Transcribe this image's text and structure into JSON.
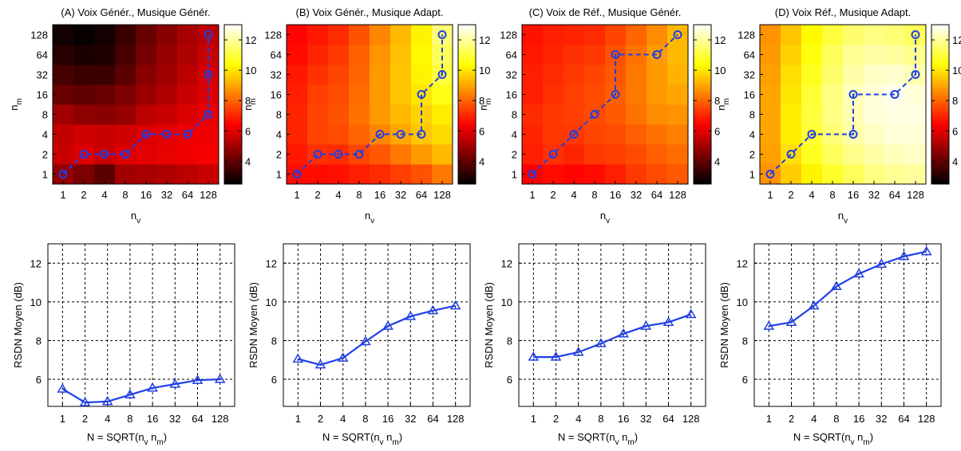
{
  "labels": {
    "tick_values": [
      "1",
      "2",
      "4",
      "8",
      "16",
      "32",
      "64",
      "128"
    ],
    "colorbar_ticks": [
      4,
      6,
      8,
      10,
      12
    ],
    "line_yticks": [
      6,
      8,
      10,
      12
    ],
    "heatmap_xlabel": {
      "main": "n",
      "sub": "v"
    },
    "heatmap_ylabel": {
      "main": "n",
      "sub": "m"
    },
    "line_xlabel": {
      "prefix": "N = SQRT(n",
      "sub1": "v",
      "middle": " n",
      "sub2": "m",
      "suffix": ")"
    },
    "line_ylabel": "RSDN Moyen (dB)"
  },
  "colors": {
    "path": "#1f3fe6",
    "grid": "#000000"
  },
  "chart_data": [
    {
      "id": "A",
      "type": "heatmap",
      "title": "(A) Voix Génér., Musique Génér.",
      "colorbar_range": [
        2.5,
        13
      ],
      "grid": [
        [
          4.8,
          4.4,
          3.9,
          5.0,
          5.1,
          5.2,
          5.4,
          5.6
        ],
        [
          5.6,
          5.9,
          5.6,
          5.9,
          6.0,
          6.1,
          6.2,
          6.3
        ],
        [
          5.5,
          5.7,
          5.6,
          5.7,
          5.9,
          6.0,
          6.2,
          6.2
        ],
        [
          5.0,
          4.7,
          4.6,
          4.8,
          5.4,
          5.6,
          5.9,
          6.1
        ],
        [
          4.1,
          4.0,
          4.1,
          4.4,
          4.9,
          5.2,
          5.6,
          5.9
        ],
        [
          3.6,
          3.4,
          3.4,
          3.9,
          4.6,
          5.0,
          5.4,
          5.8
        ],
        [
          3.1,
          2.9,
          3.0,
          3.6,
          4.3,
          4.8,
          5.2,
          5.6
        ],
        [
          2.8,
          2.6,
          2.8,
          3.4,
          4.1,
          4.6,
          5.1,
          5.4
        ]
      ],
      "path": [
        [
          1,
          1
        ],
        [
          2,
          2
        ],
        [
          4,
          2
        ],
        [
          8,
          2
        ],
        [
          16,
          4
        ],
        [
          32,
          4
        ],
        [
          64,
          4
        ],
        [
          128,
          8
        ],
        [
          128,
          32
        ],
        [
          128,
          128
        ]
      ]
    },
    {
      "id": "B",
      "type": "heatmap",
      "title": "(B) Voix Génér., Musique Adapt.",
      "colorbar_range": [
        2.5,
        13
      ],
      "grid": [
        [
          6.6,
          6.6,
          6.7,
          6.9,
          7.1,
          7.4,
          7.7,
          8.3
        ],
        [
          6.8,
          7.2,
          7.1,
          7.5,
          7.8,
          8.3,
          8.8,
          9.3
        ],
        [
          7.0,
          7.5,
          7.6,
          8.0,
          8.5,
          9.0,
          9.5,
          9.8
        ],
        [
          7.0,
          7.5,
          7.7,
          8.2,
          8.8,
          9.3,
          9.7,
          10.1
        ],
        [
          6.9,
          7.4,
          7.6,
          8.1,
          8.8,
          9.5,
          10.0,
          10.6
        ],
        [
          6.8,
          7.2,
          7.5,
          8.0,
          8.8,
          9.5,
          10.2,
          11.0
        ],
        [
          6.6,
          7.0,
          7.3,
          7.9,
          8.7,
          9.4,
          10.3,
          11.3
        ],
        [
          6.5,
          6.8,
          7.1,
          7.7,
          8.5,
          9.3,
          10.2,
          11.6
        ]
      ],
      "path": [
        [
          1,
          1
        ],
        [
          2,
          2
        ],
        [
          4,
          2
        ],
        [
          8,
          2
        ],
        [
          16,
          4
        ],
        [
          32,
          4
        ],
        [
          64,
          4
        ],
        [
          64,
          16
        ],
        [
          128,
          32
        ],
        [
          128,
          128
        ]
      ]
    },
    {
      "id": "C",
      "type": "heatmap",
      "title": "(C) Voix de Réf., Musique Génér.",
      "colorbar_range": [
        2.5,
        13
      ],
      "grid": [
        [
          6.4,
          6.6,
          6.5,
          6.6,
          6.9,
          7.3,
          7.6,
          7.8
        ],
        [
          6.9,
          7.2,
          7.0,
          7.3,
          7.4,
          7.6,
          7.9,
          8.1
        ],
        [
          7.0,
          7.3,
          7.3,
          7.5,
          7.6,
          7.9,
          8.2,
          8.4
        ],
        [
          7.1,
          7.3,
          7.4,
          7.6,
          7.8,
          8.2,
          8.6,
          8.7
        ],
        [
          6.9,
          7.2,
          7.4,
          7.6,
          7.9,
          8.3,
          8.8,
          9.0
        ],
        [
          6.9,
          7.1,
          7.3,
          7.5,
          7.8,
          8.3,
          8.8,
          9.2
        ],
        [
          6.8,
          7.0,
          7.2,
          7.3,
          7.7,
          8.2,
          8.8,
          9.3
        ],
        [
          6.7,
          6.9,
          7.0,
          7.1,
          7.5,
          8.0,
          8.6,
          9.3
        ]
      ],
      "path": [
        [
          1,
          1
        ],
        [
          2,
          2
        ],
        [
          4,
          4
        ],
        [
          8,
          8
        ],
        [
          16,
          16
        ],
        [
          16,
          64
        ],
        [
          64,
          64
        ],
        [
          128,
          128
        ]
      ]
    },
    {
      "id": "D",
      "type": "heatmap",
      "title": "(D) Voix Réf., Musique Adapt.",
      "colorbar_range": [
        2.5,
        13
      ],
      "grid": [
        [
          8.7,
          9.6,
          10.2,
          10.8,
          11.3,
          11.7,
          11.9,
          12.0
        ],
        [
          8.9,
          9.9,
          10.7,
          11.3,
          11.8,
          12.1,
          12.3,
          12.4
        ],
        [
          9.0,
          10.1,
          10.9,
          11.6,
          12.1,
          12.4,
          12.6,
          12.6
        ],
        [
          9.0,
          10.1,
          11.0,
          11.7,
          12.2,
          12.6,
          12.7,
          12.7
        ],
        [
          9.0,
          10.0,
          10.9,
          11.7,
          12.3,
          12.6,
          12.8,
          12.6
        ],
        [
          8.9,
          9.9,
          10.7,
          11.5,
          12.1,
          12.4,
          12.5,
          12.2
        ],
        [
          8.8,
          9.7,
          10.5,
          11.3,
          11.9,
          12.1,
          12.0,
          11.8
        ],
        [
          8.7,
          9.5,
          10.3,
          11.0,
          11.5,
          11.7,
          11.6,
          11.3
        ]
      ],
      "path": [
        [
          1,
          1
        ],
        [
          2,
          2
        ],
        [
          4,
          4
        ],
        [
          16,
          4
        ],
        [
          16,
          16
        ],
        [
          64,
          16
        ],
        [
          128,
          32
        ],
        [
          128,
          128
        ]
      ]
    },
    {
      "id": "A-line",
      "type": "line",
      "x": [
        1,
        2,
        4,
        8,
        16,
        32,
        64,
        128
      ],
      "y": [
        5.5,
        4.8,
        4.85,
        5.2,
        5.55,
        5.75,
        5.95,
        6.0
      ],
      "ylim": [
        4.6,
        13
      ],
      "ylabel": "RSDN Moyen (dB)",
      "marker": "triangle",
      "grid": true
    },
    {
      "id": "B-line",
      "type": "line",
      "x": [
        1,
        2,
        4,
        8,
        16,
        32,
        64,
        128
      ],
      "y": [
        7.05,
        6.75,
        7.1,
        7.95,
        8.75,
        9.25,
        9.55,
        9.8
      ],
      "ylim": [
        4.6,
        13
      ],
      "ylabel": "RSDN Moyen (dB)",
      "marker": "triangle",
      "grid": true
    },
    {
      "id": "C-line",
      "type": "line",
      "x": [
        1,
        2,
        4,
        8,
        16,
        32,
        64,
        128
      ],
      "y": [
        7.15,
        7.15,
        7.4,
        7.85,
        8.35,
        8.75,
        8.95,
        9.35
      ],
      "ylim": [
        4.6,
        13
      ],
      "ylabel": "RSDN Moyen (dB)",
      "marker": "triangle",
      "grid": true
    },
    {
      "id": "D-line",
      "type": "line",
      "x": [
        1,
        2,
        4,
        8,
        16,
        32,
        64,
        128
      ],
      "y": [
        8.75,
        8.95,
        9.8,
        10.8,
        11.45,
        11.95,
        12.35,
        12.6
      ],
      "ylim": [
        4.6,
        13
      ],
      "ylabel": "RSDN Moyen (dB)",
      "marker": "triangle",
      "grid": true
    }
  ]
}
